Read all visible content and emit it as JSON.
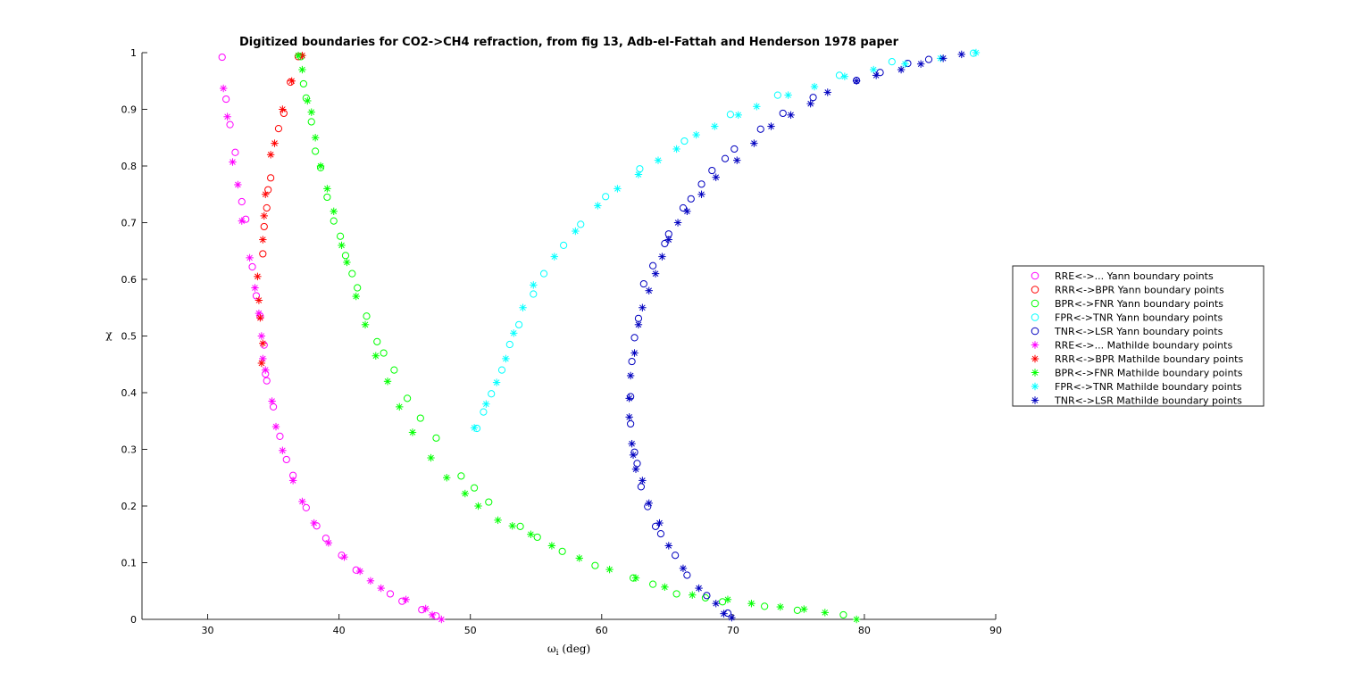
{
  "chart_data": {
    "type": "scatter",
    "title": "Digitized boundaries for CO2->CH4 refraction, from fig 13, Adb-el-Fattah and Henderson 1978 paper",
    "xlabel": "ω_i (deg)",
    "ylabel": "χ",
    "xlim": [
      25,
      90
    ],
    "ylim": [
      0,
      1
    ],
    "xticks": [
      30,
      40,
      50,
      60,
      70,
      80,
      90
    ],
    "yticks": [
      0,
      0.1,
      0.2,
      0.3,
      0.4,
      0.5,
      0.6,
      0.7,
      0.8,
      0.9,
      1
    ],
    "grid": false,
    "legend_position": "right",
    "series": [
      {
        "name": "RRE<->... Yann boundary points",
        "marker": "circle",
        "color": "#ff00ff",
        "points": [
          [
            31.1,
            0.992
          ],
          [
            31.4,
            0.918
          ],
          [
            31.7,
            0.873
          ],
          [
            32.1,
            0.824
          ],
          [
            32.6,
            0.737
          ],
          [
            32.9,
            0.706
          ],
          [
            33.4,
            0.622
          ],
          [
            33.7,
            0.571
          ],
          [
            34.0,
            0.535
          ],
          [
            34.3,
            0.484
          ],
          [
            34.4,
            0.433
          ],
          [
            34.5,
            0.421
          ],
          [
            35.0,
            0.375
          ],
          [
            35.5,
            0.323
          ],
          [
            36.0,
            0.282
          ],
          [
            36.5,
            0.254
          ],
          [
            37.5,
            0.197
          ],
          [
            38.3,
            0.165
          ],
          [
            39.0,
            0.143
          ],
          [
            40.2,
            0.113
          ],
          [
            41.3,
            0.087
          ],
          [
            43.9,
            0.045
          ],
          [
            44.8,
            0.032
          ],
          [
            46.3,
            0.017
          ],
          [
            47.4,
            0.006
          ]
        ]
      },
      {
        "name": "RRR<->BPR Yann boundary points",
        "marker": "circle",
        "color": "#ff0000",
        "points": [
          [
            34.2,
            0.645
          ],
          [
            34.3,
            0.693
          ],
          [
            34.5,
            0.726
          ],
          [
            34.6,
            0.758
          ],
          [
            34.8,
            0.779
          ],
          [
            35.4,
            0.866
          ],
          [
            35.8,
            0.893
          ],
          [
            36.3,
            0.948
          ],
          [
            36.9,
            0.993
          ]
        ]
      },
      {
        "name": "BPR<->FNR Yann boundary points",
        "marker": "circle",
        "color": "#00ff00",
        "points": [
          [
            37.1,
            0.993
          ],
          [
            37.3,
            0.945
          ],
          [
            37.5,
            0.92
          ],
          [
            37.9,
            0.878
          ],
          [
            38.2,
            0.826
          ],
          [
            38.6,
            0.797
          ],
          [
            39.1,
            0.745
          ],
          [
            39.6,
            0.703
          ],
          [
            40.1,
            0.676
          ],
          [
            40.5,
            0.642
          ],
          [
            41.0,
            0.61
          ],
          [
            41.4,
            0.585
          ],
          [
            42.1,
            0.535
          ],
          [
            42.9,
            0.49
          ],
          [
            43.4,
            0.47
          ],
          [
            44.2,
            0.44
          ],
          [
            45.2,
            0.39
          ],
          [
            46.2,
            0.355
          ],
          [
            47.4,
            0.32
          ],
          [
            49.3,
            0.253
          ],
          [
            50.3,
            0.232
          ],
          [
            51.4,
            0.207
          ],
          [
            53.8,
            0.164
          ],
          [
            55.1,
            0.145
          ],
          [
            57.0,
            0.12
          ],
          [
            59.5,
            0.095
          ],
          [
            62.4,
            0.073
          ],
          [
            63.9,
            0.062
          ],
          [
            65.7,
            0.045
          ],
          [
            67.9,
            0.038
          ],
          [
            69.2,
            0.031
          ],
          [
            72.4,
            0.023
          ],
          [
            74.9,
            0.016
          ],
          [
            78.4,
            0.008
          ]
        ]
      },
      {
        "name": "FPR<->TNR Yann boundary points",
        "marker": "circle",
        "color": "#00ffff",
        "points": [
          [
            50.5,
            0.337
          ],
          [
            51.0,
            0.366
          ],
          [
            51.6,
            0.398
          ],
          [
            52.4,
            0.44
          ],
          [
            53.0,
            0.485
          ],
          [
            53.7,
            0.52
          ],
          [
            54.8,
            0.574
          ],
          [
            55.6,
            0.61
          ],
          [
            57.1,
            0.66
          ],
          [
            58.4,
            0.697
          ],
          [
            60.3,
            0.746
          ],
          [
            62.9,
            0.795
          ],
          [
            66.3,
            0.844
          ],
          [
            69.8,
            0.891
          ],
          [
            73.4,
            0.925
          ],
          [
            78.1,
            0.96
          ],
          [
            82.1,
            0.984
          ],
          [
            88.3,
            0.999
          ]
        ]
      },
      {
        "name": "TNR<->LSR Yann boundary points",
        "marker": "circle",
        "color": "#0000bf",
        "points": [
          [
            69.6,
            0.011
          ],
          [
            68.0,
            0.042
          ],
          [
            66.5,
            0.078
          ],
          [
            65.6,
            0.113
          ],
          [
            64.5,
            0.151
          ],
          [
            64.1,
            0.164
          ],
          [
            63.5,
            0.199
          ],
          [
            63.0,
            0.234
          ],
          [
            62.7,
            0.275
          ],
          [
            62.5,
            0.295
          ],
          [
            62.2,
            0.345
          ],
          [
            62.2,
            0.393
          ],
          [
            62.3,
            0.455
          ],
          [
            62.5,
            0.497
          ],
          [
            62.8,
            0.531
          ],
          [
            63.2,
            0.592
          ],
          [
            63.9,
            0.624
          ],
          [
            64.8,
            0.663
          ],
          [
            65.1,
            0.68
          ],
          [
            66.2,
            0.726
          ],
          [
            66.8,
            0.742
          ],
          [
            67.6,
            0.768
          ],
          [
            68.4,
            0.792
          ],
          [
            69.4,
            0.813
          ],
          [
            70.1,
            0.83
          ],
          [
            72.1,
            0.865
          ],
          [
            73.8,
            0.893
          ],
          [
            76.1,
            0.921
          ],
          [
            79.4,
            0.951
          ],
          [
            81.2,
            0.965
          ],
          [
            83.3,
            0.981
          ],
          [
            84.9,
            0.988
          ]
        ]
      },
      {
        "name": "RRE<->... Mathilde boundary points",
        "marker": "asterisk",
        "color": "#ff00ff",
        "points": [
          [
            31.2,
            0.937
          ],
          [
            31.5,
            0.887
          ],
          [
            31.9,
            0.807
          ],
          [
            32.3,
            0.767
          ],
          [
            32.6,
            0.703
          ],
          [
            33.2,
            0.638
          ],
          [
            33.6,
            0.585
          ],
          [
            33.9,
            0.54
          ],
          [
            34.1,
            0.5
          ],
          [
            34.2,
            0.46
          ],
          [
            34.4,
            0.44
          ],
          [
            34.9,
            0.385
          ],
          [
            35.2,
            0.34
          ],
          [
            35.7,
            0.298
          ],
          [
            36.5,
            0.245
          ],
          [
            37.2,
            0.208
          ],
          [
            38.1,
            0.17
          ],
          [
            39.2,
            0.135
          ],
          [
            40.4,
            0.11
          ],
          [
            41.6,
            0.085
          ],
          [
            42.4,
            0.068
          ],
          [
            43.2,
            0.055
          ],
          [
            45.1,
            0.035
          ],
          [
            46.6,
            0.019
          ],
          [
            47.1,
            0.008
          ],
          [
            47.8,
            0.0
          ]
        ]
      },
      {
        "name": "RRR<->BPR Mathilde boundary points",
        "marker": "asterisk",
        "color": "#ff0000",
        "points": [
          [
            34.1,
            0.452
          ],
          [
            34.2,
            0.487
          ],
          [
            34.0,
            0.532
          ],
          [
            33.9,
            0.563
          ],
          [
            33.8,
            0.605
          ],
          [
            34.2,
            0.67
          ],
          [
            34.3,
            0.712
          ],
          [
            34.4,
            0.75
          ],
          [
            34.8,
            0.82
          ],
          [
            35.1,
            0.84
          ],
          [
            35.7,
            0.9
          ],
          [
            36.4,
            0.95
          ],
          [
            37.2,
            0.995
          ]
        ]
      },
      {
        "name": "BPR<->FNR Mathilde boundary points",
        "marker": "asterisk",
        "color": "#00ff00",
        "points": [
          [
            36.9,
            0.995
          ],
          [
            37.2,
            0.97
          ],
          [
            37.6,
            0.915
          ],
          [
            37.9,
            0.895
          ],
          [
            38.2,
            0.85
          ],
          [
            38.6,
            0.8
          ],
          [
            39.1,
            0.76
          ],
          [
            39.6,
            0.72
          ],
          [
            40.2,
            0.66
          ],
          [
            40.6,
            0.63
          ],
          [
            41.3,
            0.57
          ],
          [
            42.0,
            0.52
          ],
          [
            42.8,
            0.465
          ],
          [
            43.7,
            0.42
          ],
          [
            44.6,
            0.375
          ],
          [
            45.6,
            0.33
          ],
          [
            47.0,
            0.285
          ],
          [
            48.2,
            0.25
          ],
          [
            49.6,
            0.222
          ],
          [
            50.6,
            0.2
          ],
          [
            52.1,
            0.175
          ],
          [
            53.2,
            0.165
          ],
          [
            54.6,
            0.15
          ],
          [
            56.2,
            0.13
          ],
          [
            58.3,
            0.108
          ],
          [
            60.6,
            0.088
          ],
          [
            62.6,
            0.073
          ],
          [
            64.8,
            0.057
          ],
          [
            66.9,
            0.043
          ],
          [
            69.6,
            0.035
          ],
          [
            71.4,
            0.028
          ],
          [
            73.6,
            0.022
          ],
          [
            75.4,
            0.018
          ],
          [
            77.0,
            0.012
          ],
          [
            79.4,
            0.0
          ]
        ]
      },
      {
        "name": "FPR<->TNR Mathilde boundary points",
        "marker": "asterisk",
        "color": "#00ffff",
        "points": [
          [
            50.3,
            0.338
          ],
          [
            51.2,
            0.38
          ],
          [
            52.0,
            0.418
          ],
          [
            52.7,
            0.46
          ],
          [
            53.3,
            0.505
          ],
          [
            54.0,
            0.55
          ],
          [
            54.8,
            0.59
          ],
          [
            56.4,
            0.64
          ],
          [
            58.0,
            0.685
          ],
          [
            59.7,
            0.73
          ],
          [
            61.2,
            0.76
          ],
          [
            62.8,
            0.785
          ],
          [
            64.3,
            0.81
          ],
          [
            65.7,
            0.83
          ],
          [
            67.2,
            0.855
          ],
          [
            68.6,
            0.87
          ],
          [
            70.4,
            0.89
          ],
          [
            71.8,
            0.905
          ],
          [
            74.2,
            0.925
          ],
          [
            76.2,
            0.94
          ],
          [
            78.5,
            0.958
          ],
          [
            80.7,
            0.97
          ],
          [
            83.1,
            0.98
          ],
          [
            85.8,
            0.99
          ],
          [
            88.5,
            1.0
          ]
        ]
      },
      {
        "name": "TNR<->LSR Mathilde boundary points",
        "marker": "asterisk",
        "color": "#0000bf",
        "points": [
          [
            69.9,
            0.003
          ],
          [
            69.3,
            0.01
          ],
          [
            68.7,
            0.028
          ],
          [
            67.4,
            0.055
          ],
          [
            66.2,
            0.09
          ],
          [
            65.1,
            0.13
          ],
          [
            64.4,
            0.17
          ],
          [
            63.6,
            0.205
          ],
          [
            63.1,
            0.245
          ],
          [
            62.6,
            0.265
          ],
          [
            62.4,
            0.29
          ],
          [
            62.3,
            0.31
          ],
          [
            62.1,
            0.357
          ],
          [
            62.1,
            0.39
          ],
          [
            62.2,
            0.43
          ],
          [
            62.5,
            0.47
          ],
          [
            62.8,
            0.52
          ],
          [
            63.1,
            0.55
          ],
          [
            63.6,
            0.58
          ],
          [
            64.1,
            0.61
          ],
          [
            64.6,
            0.64
          ],
          [
            65.1,
            0.67
          ],
          [
            65.8,
            0.7
          ],
          [
            66.5,
            0.72
          ],
          [
            67.6,
            0.75
          ],
          [
            68.7,
            0.78
          ],
          [
            70.3,
            0.81
          ],
          [
            71.6,
            0.84
          ],
          [
            72.9,
            0.87
          ],
          [
            74.4,
            0.89
          ],
          [
            75.9,
            0.91
          ],
          [
            77.2,
            0.93
          ],
          [
            79.4,
            0.95
          ],
          [
            80.9,
            0.96
          ],
          [
            82.8,
            0.97
          ],
          [
            84.3,
            0.98
          ],
          [
            86.0,
            0.99
          ],
          [
            87.4,
            0.997
          ]
        ]
      }
    ]
  }
}
